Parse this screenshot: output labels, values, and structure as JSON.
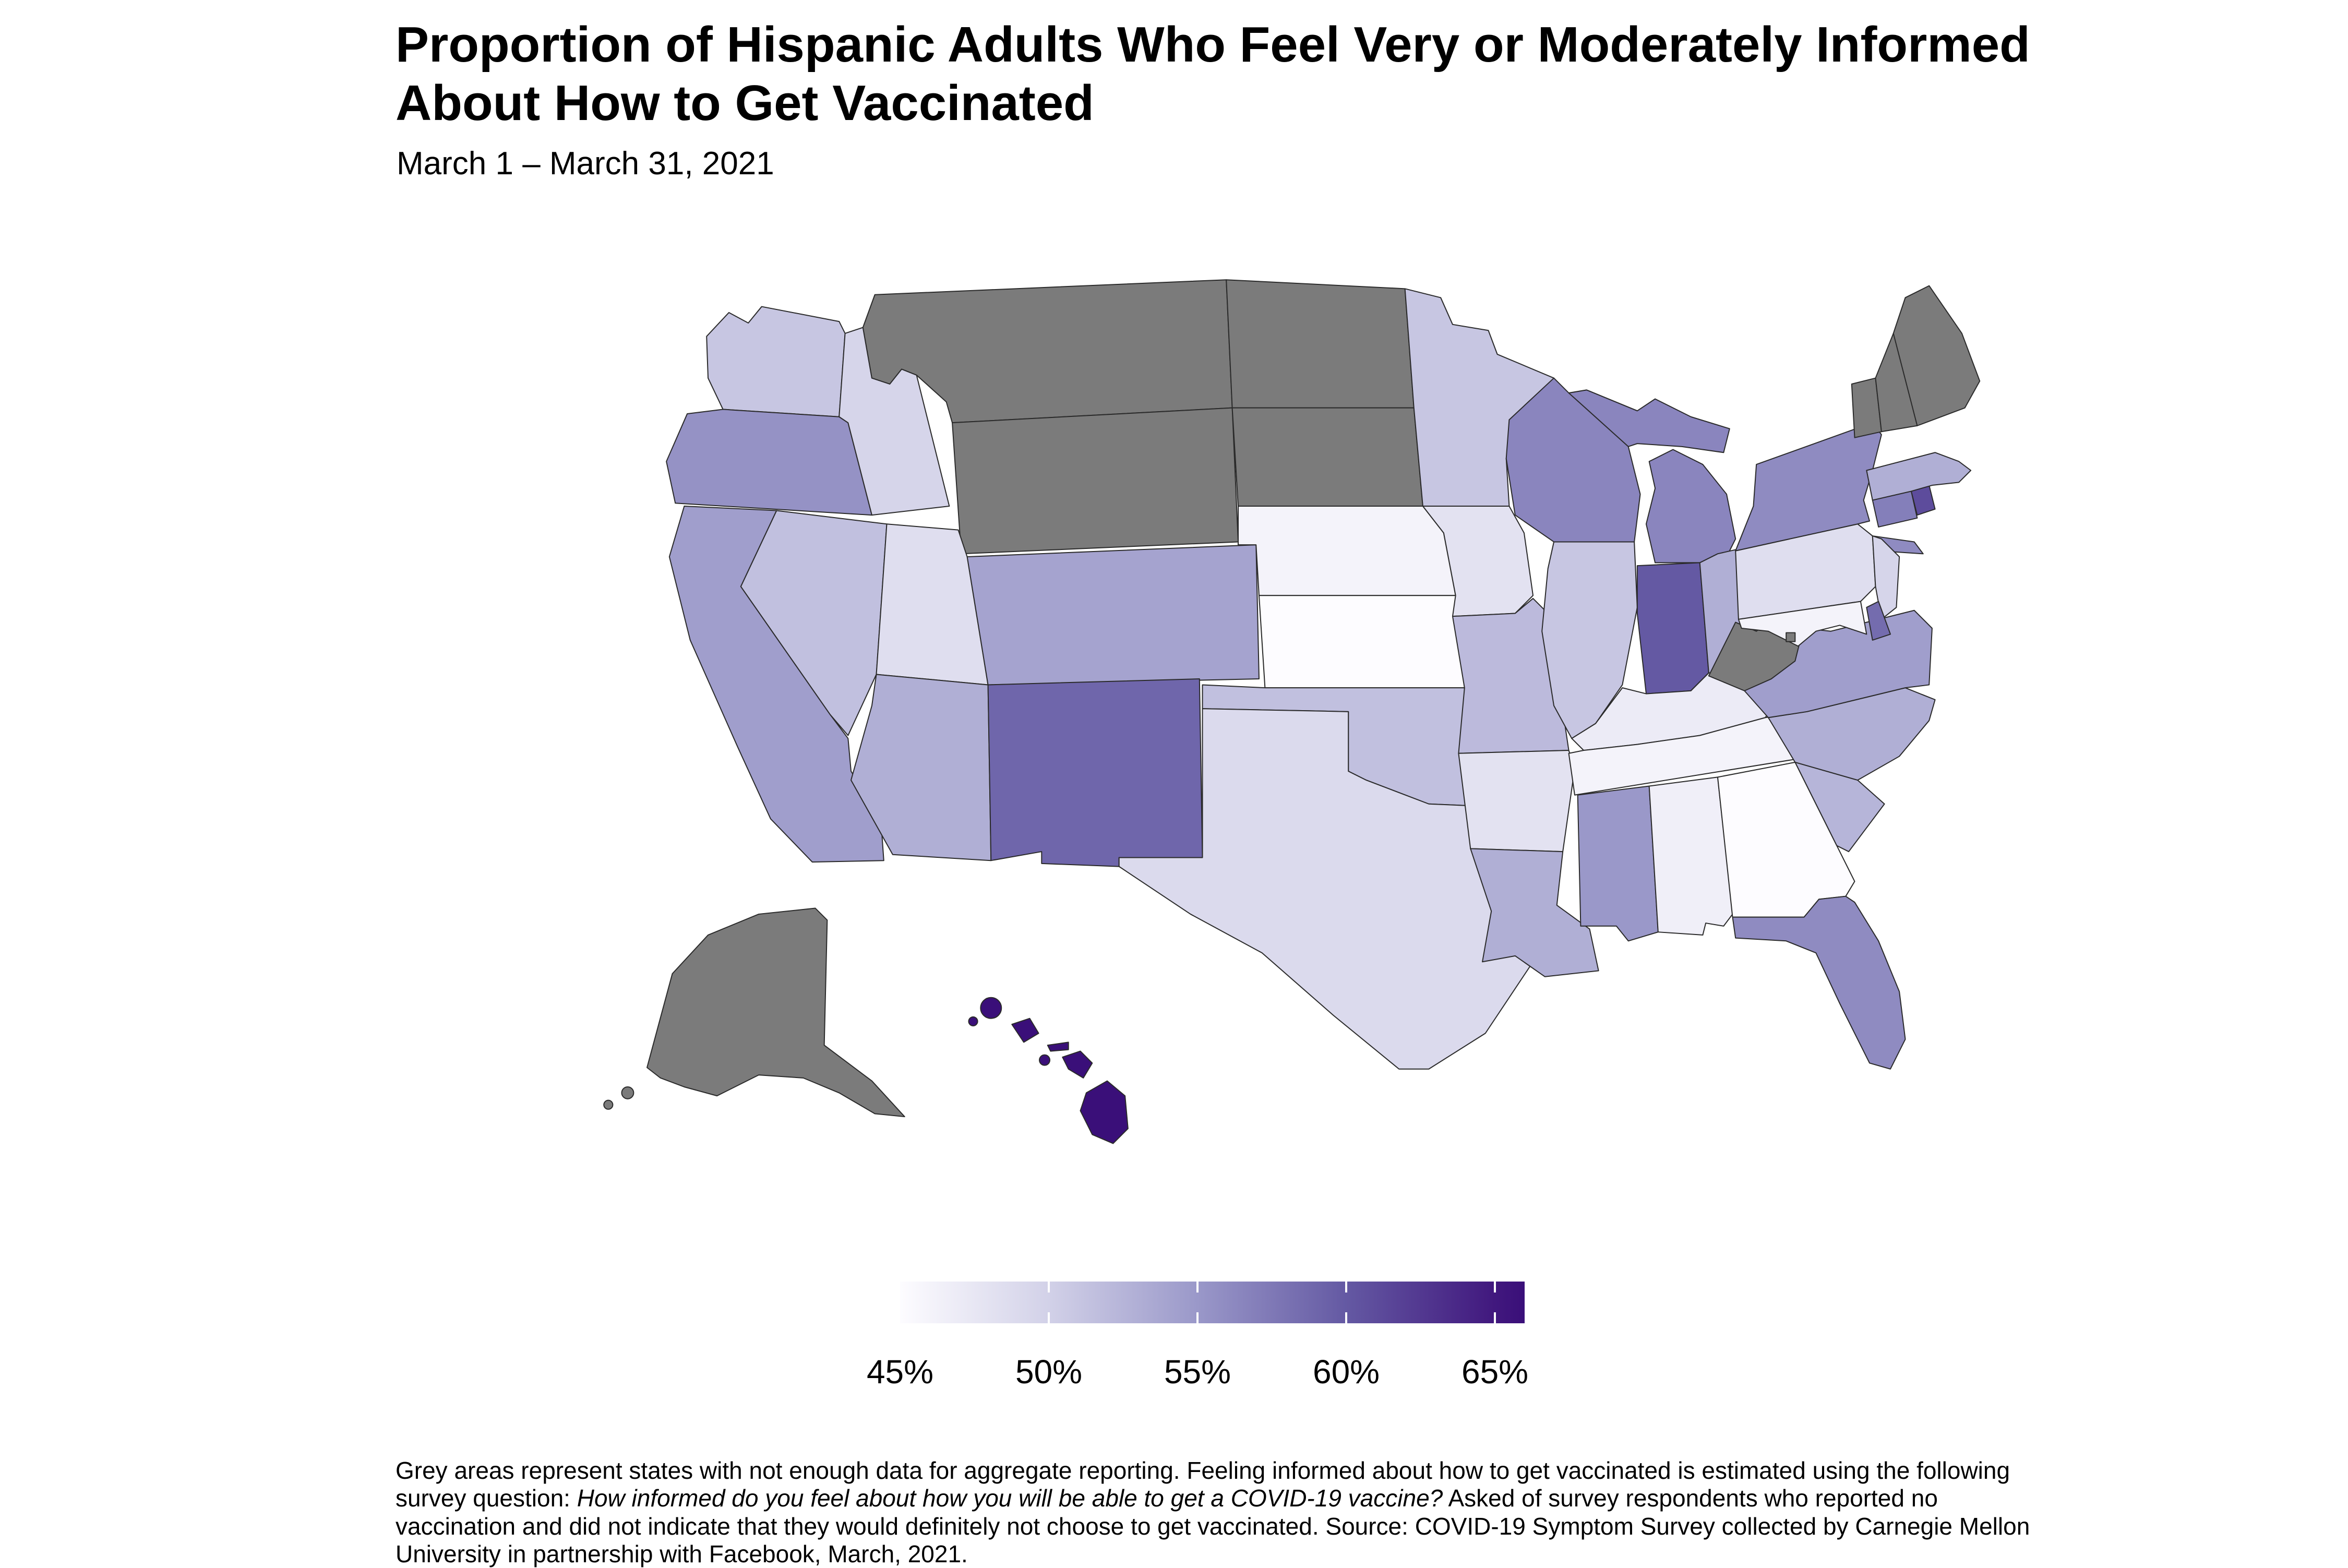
{
  "title": {
    "line1": "Proportion of Hispanic Adults Who Feel Very or Moderately Informed",
    "line2": "About How to Get Vaccinated"
  },
  "subtitle": "March 1 – March 31, 2021",
  "legend": {
    "tick_labels": [
      "45%",
      "50%",
      "55%",
      "60%",
      "65%"
    ],
    "tick_values": [
      45,
      50,
      55,
      60,
      65
    ]
  },
  "footnote": {
    "line1": "Grey areas represent states with not enough data for aggregate reporting. Feeling informed about how to get vaccinated is estimated using the following",
    "line2_pre": "survey question: ",
    "line2_italic": "How informed do you feel about how you will be able to get a COVID-19 vaccine?",
    "line2_post": " Asked of survey respondents who reported no",
    "line3": "vaccination and did not indicate that they would definitely not choose to get vaccinated. Source: COVID-19 Symptom Survey collected by Carnegie Mellon",
    "line4": "University in partnership with Facebook, March, 2021."
  },
  "chart_data": {
    "type": "choropleth",
    "geometry": "us-states",
    "title": "Proportion of Hispanic Adults Who Feel Very or Moderately Informed About How to Get Vaccinated",
    "date_range": "March 1 – March 31, 2021",
    "unit": "%",
    "legend_position": "bottom",
    "values_estimated_from_color_scale": true,
    "color_scale": {
      "min": 45,
      "max": 66,
      "no_data_color": "#7b7b7b",
      "stops": [
        {
          "value": 45,
          "color": "#fdfcff"
        },
        {
          "value": 50,
          "color": "#d2d1e8"
        },
        {
          "value": 55,
          "color": "#9a98c9"
        },
        {
          "value": 60,
          "color": "#6459a3"
        },
        {
          "value": 65,
          "color": "#41187e"
        },
        {
          "value": 66,
          "color": "#3a0f79"
        }
      ]
    },
    "no_data_states": [
      "AK",
      "DC",
      "ME",
      "MT",
      "ND",
      "NH",
      "SD",
      "VT",
      "WV",
      "WY"
    ],
    "states": [
      {
        "abbr": "AL",
        "name": "Alabama",
        "value": 46.5
      },
      {
        "abbr": "AK",
        "name": "Alaska",
        "value": null
      },
      {
        "abbr": "AZ",
        "name": "Arizona",
        "value": 53
      },
      {
        "abbr": "AR",
        "name": "Arkansas",
        "value": 48
      },
      {
        "abbr": "CA",
        "name": "California",
        "value": 54.5
      },
      {
        "abbr": "CO",
        "name": "Colorado",
        "value": 54
      },
      {
        "abbr": "CT",
        "name": "Connecticut",
        "value": 57
      },
      {
        "abbr": "DE",
        "name": "Delaware",
        "value": 58.5
      },
      {
        "abbr": "DC",
        "name": "District of Columbia",
        "value": null
      },
      {
        "abbr": "FL",
        "name": "Florida",
        "value": 56
      },
      {
        "abbr": "GA",
        "name": "Georgia",
        "value": 45
      },
      {
        "abbr": "HI",
        "name": "Hawaii",
        "value": 66
      },
      {
        "abbr": "ID",
        "name": "Idaho",
        "value": 49.5
      },
      {
        "abbr": "IL",
        "name": "Illinois",
        "value": 51
      },
      {
        "abbr": "IN",
        "name": "Indiana",
        "value": 60
      },
      {
        "abbr": "IA",
        "name": "Iowa",
        "value": 48
      },
      {
        "abbr": "KS",
        "name": "Kansas",
        "value": 45
      },
      {
        "abbr": "KY",
        "name": "Kentucky",
        "value": 47
      },
      {
        "abbr": "LA",
        "name": "Louisiana",
        "value": 53
      },
      {
        "abbr": "ME",
        "name": "Maine",
        "value": null
      },
      {
        "abbr": "MD",
        "name": "Maryland",
        "value": 46
      },
      {
        "abbr": "MA",
        "name": "Massachusetts",
        "value": 53
      },
      {
        "abbr": "MI",
        "name": "Michigan",
        "value": 56.5
      },
      {
        "abbr": "MN",
        "name": "Minnesota",
        "value": 51
      },
      {
        "abbr": "MS",
        "name": "Mississippi",
        "value": 55
      },
      {
        "abbr": "MO",
        "name": "Missouri",
        "value": 52
      },
      {
        "abbr": "MT",
        "name": "Montana",
        "value": null
      },
      {
        "abbr": "NE",
        "name": "Nebraska",
        "value": 46
      },
      {
        "abbr": "NV",
        "name": "Nevada",
        "value": 51.5
      },
      {
        "abbr": "NH",
        "name": "New Hampshire",
        "value": null
      },
      {
        "abbr": "NJ",
        "name": "New Jersey",
        "value": 49.5
      },
      {
        "abbr": "NM",
        "name": "New Mexico",
        "value": 59
      },
      {
        "abbr": "NY",
        "name": "New York",
        "value": 56
      },
      {
        "abbr": "NC",
        "name": "North Carolina",
        "value": 53
      },
      {
        "abbr": "ND",
        "name": "North Dakota",
        "value": null
      },
      {
        "abbr": "OH",
        "name": "Ohio",
        "value": 53
      },
      {
        "abbr": "OK",
        "name": "Oklahoma",
        "value": 51.5
      },
      {
        "abbr": "OR",
        "name": "Oregon",
        "value": 55.5
      },
      {
        "abbr": "PA",
        "name": "Pennsylvania",
        "value": 48.5
      },
      {
        "abbr": "RI",
        "name": "Rhode Island",
        "value": 61
      },
      {
        "abbr": "SC",
        "name": "South Carolina",
        "value": 52.5
      },
      {
        "abbr": "SD",
        "name": "South Dakota",
        "value": null
      },
      {
        "abbr": "TN",
        "name": "Tennessee",
        "value": 46
      },
      {
        "abbr": "TX",
        "name": "Texas",
        "value": 49
      },
      {
        "abbr": "UT",
        "name": "Utah",
        "value": 48.5
      },
      {
        "abbr": "VT",
        "name": "Vermont",
        "value": null
      },
      {
        "abbr": "VA",
        "name": "Virginia",
        "value": 54.5
      },
      {
        "abbr": "WA",
        "name": "Washington",
        "value": 51
      },
      {
        "abbr": "WV",
        "name": "West Virginia",
        "value": null
      },
      {
        "abbr": "WI",
        "name": "Wisconsin",
        "value": 56.5
      },
      {
        "abbr": "WY",
        "name": "Wyoming",
        "value": null
      }
    ]
  }
}
